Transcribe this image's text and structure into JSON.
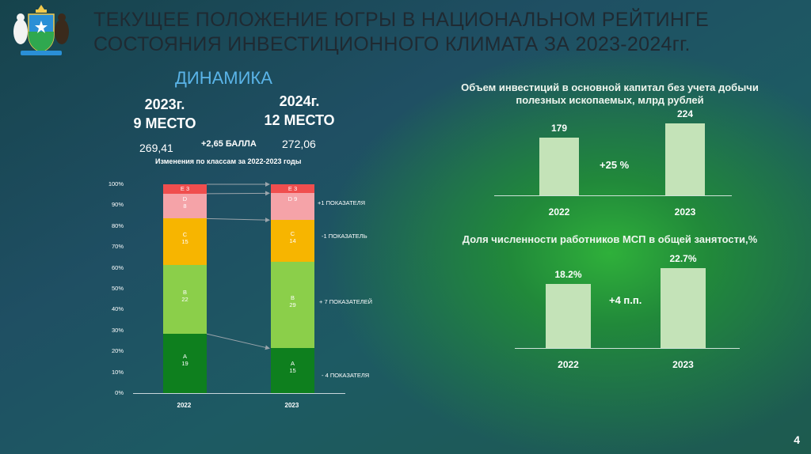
{
  "header": {
    "title_line1": "ТЕКУЩЕЕ ПОЛОЖЕНИЕ ЮГРЫ В НАЦИОНАЛЬНОМ РЕЙТИНГЕ",
    "title_line2": "СОСТОЯНИЯ ИНВЕСТИЦИОННОГО КЛИМАТА ЗА 2023-2024гг."
  },
  "dynamics": {
    "title": "ДИНАМИКА",
    "y2023_year": "2023г.",
    "y2023_place": "9 МЕСТО",
    "y2023_score": "269,41",
    "y2024_year": "2024г.",
    "y2024_place": "12 МЕСТО",
    "y2024_score": "272,06",
    "delta": "+2,65 БАЛЛА"
  },
  "chart_data": [
    {
      "type": "bar",
      "stacked": true,
      "title": "Изменения по классам за 2022-2023 годы",
      "categories": [
        "2022",
        "2023"
      ],
      "y_ticks": [
        "0%",
        "10%",
        "20%",
        "30%",
        "40%",
        "50%",
        "60%",
        "70%",
        "80%",
        "90%",
        "100%"
      ],
      "series": [
        {
          "name": "A",
          "values": [
            19,
            15
          ],
          "color": "#0e7f1e",
          "labels": [
            "A\n19",
            "A\n15"
          ]
        },
        {
          "name": "B",
          "values": [
            22,
            29
          ],
          "color": "#8bcf4a",
          "labels": [
            "B\n22",
            "B\n29"
          ]
        },
        {
          "name": "C",
          "values": [
            15,
            14
          ],
          "color": "#f7b500",
          "labels": [
            "C\n15",
            "C\n14"
          ]
        },
        {
          "name": "D",
          "values": [
            8,
            9
          ],
          "color": "#f5a3a8",
          "labels": [
            "D\n8",
            "D 9"
          ]
        },
        {
          "name": "E",
          "values": [
            3,
            3
          ],
          "color": "#f04e4e",
          "labels": [
            "E 3",
            "E 3"
          ]
        }
      ],
      "annotations": [
        "+1 ПОКАЗАТЕЛЯ",
        "-1 ПОКАЗАТЕЛЬ",
        "+ 7 ПОКАЗАТЕЛЕЙ",
        "- 4 ПОКАЗАТЕЛЯ"
      ]
    },
    {
      "type": "bar",
      "title": "Объем инвестиций в основной капитал без учета добычи полезных ископаемых, млрд рублей",
      "categories": [
        "2022",
        "2023"
      ],
      "values": [
        179,
        224
      ],
      "value_labels": [
        "179",
        "224"
      ],
      "growth": "+25 %"
    },
    {
      "type": "bar",
      "title": "Доля численности работников МСП в общей занятости,%",
      "categories": [
        "2022",
        "2023"
      ],
      "values": [
        18.2,
        22.7
      ],
      "value_labels": [
        "18.2%",
        "22.7%"
      ],
      "growth": "+4 п.п."
    }
  ],
  "page": {
    "number": "4"
  }
}
